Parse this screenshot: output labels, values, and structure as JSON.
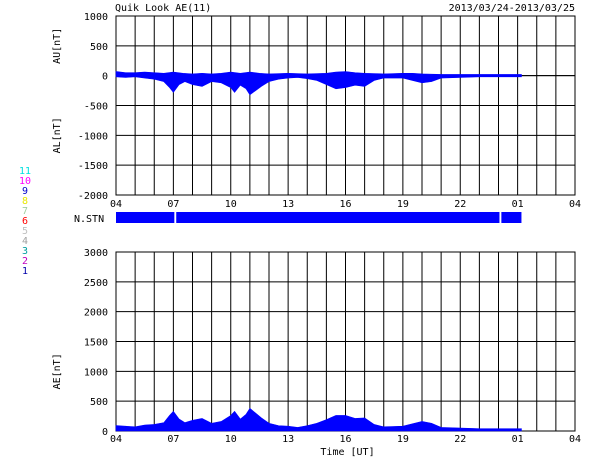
{
  "header": {
    "title": "Quik Look AE(11)",
    "date_range": "2013/03/24-2013/03/25"
  },
  "colors": {
    "fill": "#0000ff",
    "grid": "#000000",
    "text": "#000000"
  },
  "station_legend": [
    {
      "label": "11",
      "color": "#00e0e0"
    },
    {
      "label": "10",
      "color": "#ff00ff"
    },
    {
      "label": "9",
      "color": "#0000cc"
    },
    {
      "label": "8",
      "color": "#e8e800"
    },
    {
      "label": "7",
      "color": "#a0d0a0"
    },
    {
      "label": "6",
      "color": "#ff0000"
    },
    {
      "label": "5",
      "color": "#c0c0c0"
    },
    {
      "label": "4",
      "color": "#a0a0a0"
    },
    {
      "label": "3",
      "color": "#00a0a0"
    },
    {
      "label": "2",
      "color": "#c000c0"
    },
    {
      "label": "1",
      "color": "#0000aa"
    }
  ],
  "x_ticks": [
    "04",
    "07",
    "10",
    "13",
    "16",
    "19",
    "22",
    "01",
    "04"
  ],
  "chart_data": [
    {
      "type": "area",
      "name": "au_al_panel",
      "ylabel_upper": "AU[nT]",
      "ylabel_lower": "AL[nT]",
      "ylim": [
        -2000,
        1000
      ],
      "yticks": [
        1000,
        500,
        0,
        -500,
        -1000,
        -1500,
        -2000
      ],
      "xlim": [
        4,
        28
      ],
      "x_unit": "hours UT from 04",
      "data_end": 25.2,
      "series": [
        {
          "name": "AU",
          "x": [
            4.0,
            4.5,
            5.0,
            5.5,
            6.0,
            6.5,
            7.0,
            7.5,
            8.0,
            8.5,
            9.0,
            9.5,
            10.0,
            10.5,
            11.0,
            11.5,
            12.0,
            13.0,
            14.0,
            15.0,
            15.5,
            16.0,
            16.5,
            17.0,
            18.0,
            19.0,
            19.5,
            20.0,
            21.0,
            22.0,
            23.0,
            24.0,
            25.2
          ],
          "values": [
            70,
            50,
            50,
            60,
            50,
            40,
            60,
            40,
            30,
            40,
            30,
            40,
            60,
            40,
            60,
            40,
            30,
            40,
            30,
            40,
            60,
            70,
            50,
            40,
            30,
            40,
            40,
            30,
            20,
            20,
            20,
            20,
            20
          ]
        },
        {
          "name": "AL",
          "x": [
            4.0,
            4.5,
            5.0,
            5.5,
            6.0,
            6.5,
            6.8,
            7.0,
            7.3,
            7.6,
            8.0,
            8.5,
            9.0,
            9.5,
            10.0,
            10.2,
            10.5,
            10.8,
            11.0,
            11.3,
            11.6,
            12.0,
            12.5,
            13.0,
            13.5,
            14.0,
            14.5,
            15.0,
            15.5,
            16.0,
            16.5,
            17.0,
            17.5,
            18.0,
            19.0,
            19.5,
            20.0,
            20.5,
            21.0,
            22.0,
            23.0,
            24.0,
            25.2
          ],
          "values": [
            -20,
            -30,
            -20,
            -40,
            -60,
            -100,
            -200,
            -280,
            -150,
            -100,
            -150,
            -180,
            -100,
            -120,
            -200,
            -280,
            -160,
            -220,
            -320,
            -250,
            -180,
            -100,
            -60,
            -40,
            -30,
            -50,
            -80,
            -150,
            -220,
            -200,
            -160,
            -180,
            -80,
            -40,
            -40,
            -80,
            -120,
            -100,
            -40,
            -30,
            -20,
            -20,
            -20
          ]
        }
      ]
    },
    {
      "type": "bar",
      "name": "station_count",
      "label": "N.STN",
      "segments": [
        [
          4.0,
          7.05
        ],
        [
          7.15,
          24.05
        ],
        [
          24.15,
          25.2
        ]
      ]
    },
    {
      "type": "area",
      "name": "ae_panel",
      "ylabel": "AE[nT]",
      "xlabel": "Time [UT]",
      "ylim": [
        0,
        3000
      ],
      "yticks": [
        3000,
        2500,
        2000,
        1500,
        1000,
        500,
        0
      ],
      "xlim": [
        4,
        28
      ],
      "data_end": 25.2,
      "series": [
        {
          "name": "AE",
          "x": [
            4.0,
            4.5,
            5.0,
            5.5,
            6.0,
            6.5,
            6.8,
            7.0,
            7.3,
            7.6,
            8.0,
            8.5,
            9.0,
            9.5,
            10.0,
            10.2,
            10.5,
            10.8,
            11.0,
            11.3,
            11.6,
            12.0,
            12.5,
            13.0,
            13.5,
            14.0,
            14.5,
            15.0,
            15.5,
            16.0,
            16.5,
            17.0,
            17.5,
            18.0,
            19.0,
            19.5,
            20.0,
            20.5,
            21.0,
            22.0,
            23.0,
            24.0,
            25.2
          ],
          "values": [
            90,
            80,
            70,
            100,
            110,
            140,
            260,
            330,
            200,
            140,
            180,
            210,
            130,
            160,
            260,
            330,
            200,
            280,
            380,
            300,
            220,
            130,
            90,
            80,
            60,
            90,
            130,
            190,
            260,
            260,
            210,
            220,
            110,
            70,
            80,
            120,
            160,
            130,
            60,
            50,
            40,
            40,
            40
          ]
        }
      ]
    }
  ]
}
